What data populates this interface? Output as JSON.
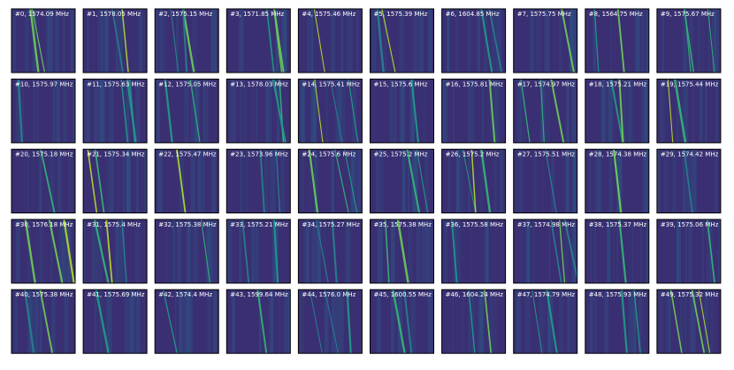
{
  "panels": [
    {
      "label": "#0, 1574.09 MHz"
    },
    {
      "label": "#1, 1578.05 MHz"
    },
    {
      "label": "#2, 1575.15 MHz"
    },
    {
      "label": "#3, 1571.85 MHz"
    },
    {
      "label": "#4, 1575.46 MHz"
    },
    {
      "label": "#5, 1575.39 MHz"
    },
    {
      "label": "#6, 1604.85 MHz"
    },
    {
      "label": "#7, 1575.75 MHz"
    },
    {
      "label": "#8, 1564.75 MHz"
    },
    {
      "label": "#9, 1575.67 MHz"
    },
    {
      "label": "#10, 1575.97 MHz"
    },
    {
      "label": "#11, 1575.63 MHz"
    },
    {
      "label": "#12, 1575.05 MHz"
    },
    {
      "label": "#13, 1578.03 MHz"
    },
    {
      "label": "#14, 1575.41 MHz"
    },
    {
      "label": "#15, 1575.6 MHz"
    },
    {
      "label": "#16, 1575.81 MHz"
    },
    {
      "label": "#17, 1574.97 MHz"
    },
    {
      "label": "#18, 1575.21 MHz"
    },
    {
      "label": "#19, 1575.44 MHz"
    },
    {
      "label": "#20, 1575.18 MHz"
    },
    {
      "label": "#21, 1575.34 MHz"
    },
    {
      "label": "#22, 1575.47 MHz"
    },
    {
      "label": "#23, 1573.96 MHz"
    },
    {
      "label": "#24, 1575.6 MHz"
    },
    {
      "label": "#25, 1575.2 MHz"
    },
    {
      "label": "#26, 1575.2 MHz"
    },
    {
      "label": "#27, 1575.51 MHz"
    },
    {
      "label": "#28, 1574.38 MHz"
    },
    {
      "label": "#29, 1574.42 MHz"
    },
    {
      "label": "#30, 1576.18 MHz"
    },
    {
      "label": "#31, 1575.4 MHz"
    },
    {
      "label": "#32, 1575.38 MHz"
    },
    {
      "label": "#33, 1575.21 MHz"
    },
    {
      "label": "#34, 1575.27 MHz"
    },
    {
      "label": "#35, 1575.38 MHz"
    },
    {
      "label": "#36, 1575.58 MHz"
    },
    {
      "label": "#37, 1574.98 MHz"
    },
    {
      "label": "#38, 1575.37 MHz"
    },
    {
      "label": "#39, 1575.06 MHz"
    },
    {
      "label": "#40, 1575.38 MHz"
    },
    {
      "label": "#41, 1575.69 MHz"
    },
    {
      "label": "#42, 1574.4 MHz"
    },
    {
      "label": "#43, 1599.64 MHz"
    },
    {
      "label": "#44, 1576.0 MHz"
    },
    {
      "label": "#45, 1600.55 MHz"
    },
    {
      "label": "#46, 1604.24 MHz"
    },
    {
      "label": "#47, 1574.79 MHz"
    },
    {
      "label": "#48, 1575.93 MHz"
    },
    {
      "label": "#49, 1575.32 MHz"
    }
  ]
}
